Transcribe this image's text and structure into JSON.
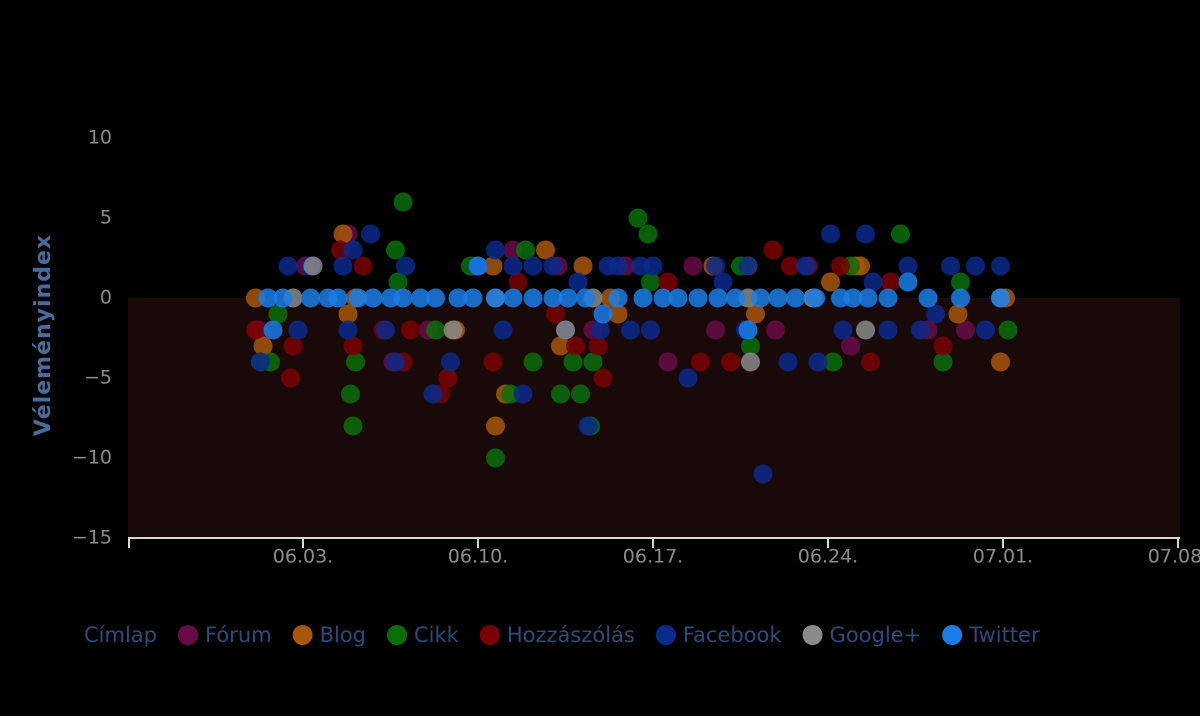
{
  "chart_data": {
    "type": "scatter",
    "y_label": "Véleményindex",
    "ylim": [
      -15,
      12
    ],
    "yticks": [
      {
        "value": -15,
        "label": "−15"
      },
      {
        "value": -10,
        "label": "−10"
      },
      {
        "value": -5,
        "label": "−5"
      },
      0,
      5,
      10
    ],
    "xlim": [
      0,
      42
    ],
    "xticks": [
      {
        "value": 7,
        "label": "06.03."
      },
      {
        "value": 14,
        "label": "06.10."
      },
      {
        "value": 21,
        "label": "06.17."
      },
      {
        "value": 28,
        "label": "06.24."
      },
      {
        "value": 35,
        "label": "07.01."
      },
      {
        "value": 42,
        "label": "07.08."
      }
    ],
    "series": [
      {
        "name": "Címlap",
        "x": [],
        "y": []
      },
      {
        "name": "Fórum",
        "color": "#6a0a46",
        "x": [
          5.2,
          7.1,
          8.8,
          10.6,
          12.0,
          15.4,
          17.2,
          18.6,
          19.9,
          21.6,
          22.6,
          23.5,
          25.9,
          27.2,
          28.9,
          32.0,
          33.5
        ],
        "y": [
          -2,
          2,
          4,
          -4,
          -2,
          3,
          2,
          -2,
          2,
          -4,
          2,
          -2,
          -2,
          2,
          -3,
          -2,
          -2
        ]
      },
      {
        "name": "Blog",
        "color": "#a8560a",
        "x": [
          5.1,
          5.4,
          8.6,
          8.8,
          9.1,
          13.1,
          14.6,
          14.7,
          15.1,
          16.7,
          17.3,
          18.2,
          19.3,
          19.6,
          23.4,
          24.8,
          25.1,
          28.1,
          29.1,
          29.3,
          33.2,
          34.9,
          35.1
        ],
        "y": [
          0,
          -3,
          4,
          -1,
          0,
          -2,
          2,
          -8,
          -6,
          3,
          -3,
          2,
          0,
          -1,
          2,
          2,
          -1,
          1,
          2,
          2,
          -1,
          -4,
          0
        ],
        "note_free": true
      },
      {
        "name": "Cikk",
        "color": "#0a6e0a",
        "x": [
          5.3,
          5.7,
          6.0,
          8.9,
          9.0,
          9.1,
          10.7,
          10.8,
          11.0,
          12.3,
          13.7,
          14.7,
          15.3,
          15.9,
          16.2,
          17.3,
          17.8,
          18.1,
          18.5,
          18.6,
          20.4,
          20.8,
          20.9,
          24.5,
          24.9,
          28.2,
          28.9,
          30.9,
          32.6,
          33.3,
          35.2
        ],
        "y": [
          -4,
          -4,
          -1,
          -6,
          -8,
          -4,
          3,
          1,
          6,
          -2,
          2,
          -10,
          -6,
          3,
          -4,
          -6,
          -4,
          -6,
          -8,
          -4,
          5,
          4,
          1,
          2,
          -3,
          -4,
          2,
          4,
          -4,
          1,
          -2
        ]
      },
      {
        "name": "Hozzászólás",
        "color": "#7a0202",
        "x": [
          5.1,
          6.5,
          6.6,
          8.5,
          9.0,
          9.4,
          10.2,
          11.0,
          11.3,
          12.5,
          12.8,
          14.6,
          15.6,
          17.1,
          17.9,
          18.8,
          19.0,
          21.6,
          22.9,
          24.1,
          25.8,
          26.5,
          28.5,
          29.7,
          30.5,
          32.6
        ],
        "y": [
          -2,
          -5,
          -3,
          3,
          -3,
          2,
          -2,
          -4,
          -2,
          -6,
          -5,
          -4,
          1,
          -1,
          -3,
          -3,
          -5,
          1,
          -4,
          -4,
          3,
          2,
          2,
          -4,
          1,
          -3
        ]
      },
      {
        "name": "Facebook",
        "color": "#0a2a8c",
        "x": [
          5.3,
          6.4,
          6.8,
          7.3,
          8.6,
          8.8,
          9.0,
          9.7,
          10.3,
          10.7,
          11.1,
          12.2,
          12.9,
          14.0,
          14.7,
          15.0,
          15.4,
          15.8,
          16.2,
          17.0,
          17.5,
          18.0,
          18.4,
          18.9,
          19.2,
          19.6,
          20.1,
          20.5,
          20.9,
          21.0,
          22.4,
          23.5,
          23.8,
          24.7,
          24.8,
          25.4,
          26.4,
          27.1,
          27.6,
          28.1,
          28.6,
          29.5,
          29.8,
          30.4,
          31.2,
          31.7,
          32.3,
          32.9,
          33.9,
          34.3,
          34.9
        ],
        "y": [
          -4,
          2,
          -2,
          2,
          2,
          -2,
          3,
          4,
          -2,
          -4,
          2,
          -6,
          -4,
          2,
          3,
          -2,
          2,
          -6,
          2,
          2,
          -2,
          1,
          -8,
          -2,
          2,
          2,
          -2,
          2,
          -2,
          2,
          -5,
          2,
          1,
          -2,
          2,
          -11,
          -4,
          2,
          -4,
          4,
          -2,
          4,
          1,
          -2,
          2,
          -2,
          -1,
          2,
          2,
          -2,
          2
        ]
      },
      {
        "name": "Google+",
        "color": "#8a8a8a",
        "x": [
          6.6,
          7.4,
          13.0,
          14.7,
          17.5,
          18.6,
          24.8,
          24.9,
          27.4,
          29.5,
          34.9
        ],
        "y": [
          0,
          2,
          -2,
          0,
          -2,
          0,
          0,
          -4,
          0,
          -2,
          0
        ]
      },
      {
        "name": "Twitter",
        "color": "#1a7ee8",
        "x": [
          5.6,
          5.8,
          6.2,
          7.3,
          8.0,
          8.4,
          9.2,
          9.8,
          10.5,
          11.0,
          11.7,
          12.3,
          13.2,
          13.8,
          14.0,
          14.7,
          15.4,
          16.2,
          17.0,
          17.6,
          18.3,
          19.0,
          19.6,
          20.6,
          21.4,
          22.0,
          22.8,
          23.6,
          24.3,
          24.8,
          25.3,
          26.0,
          26.7,
          27.5,
          28.5,
          29.0,
          29.6,
          30.4,
          31.2,
          32.0,
          33.3,
          34.9
        ],
        "y": [
          0,
          -2,
          0,
          0,
          0,
          0,
          0,
          0,
          0,
          0,
          0,
          0,
          0,
          0,
          2,
          0,
          0,
          0,
          0,
          0,
          0,
          -1,
          0,
          0,
          0,
          0,
          0,
          0,
          0,
          -2,
          0,
          0,
          0,
          0,
          0,
          0,
          0,
          0,
          1,
          0,
          0,
          0
        ]
      }
    ]
  }
}
